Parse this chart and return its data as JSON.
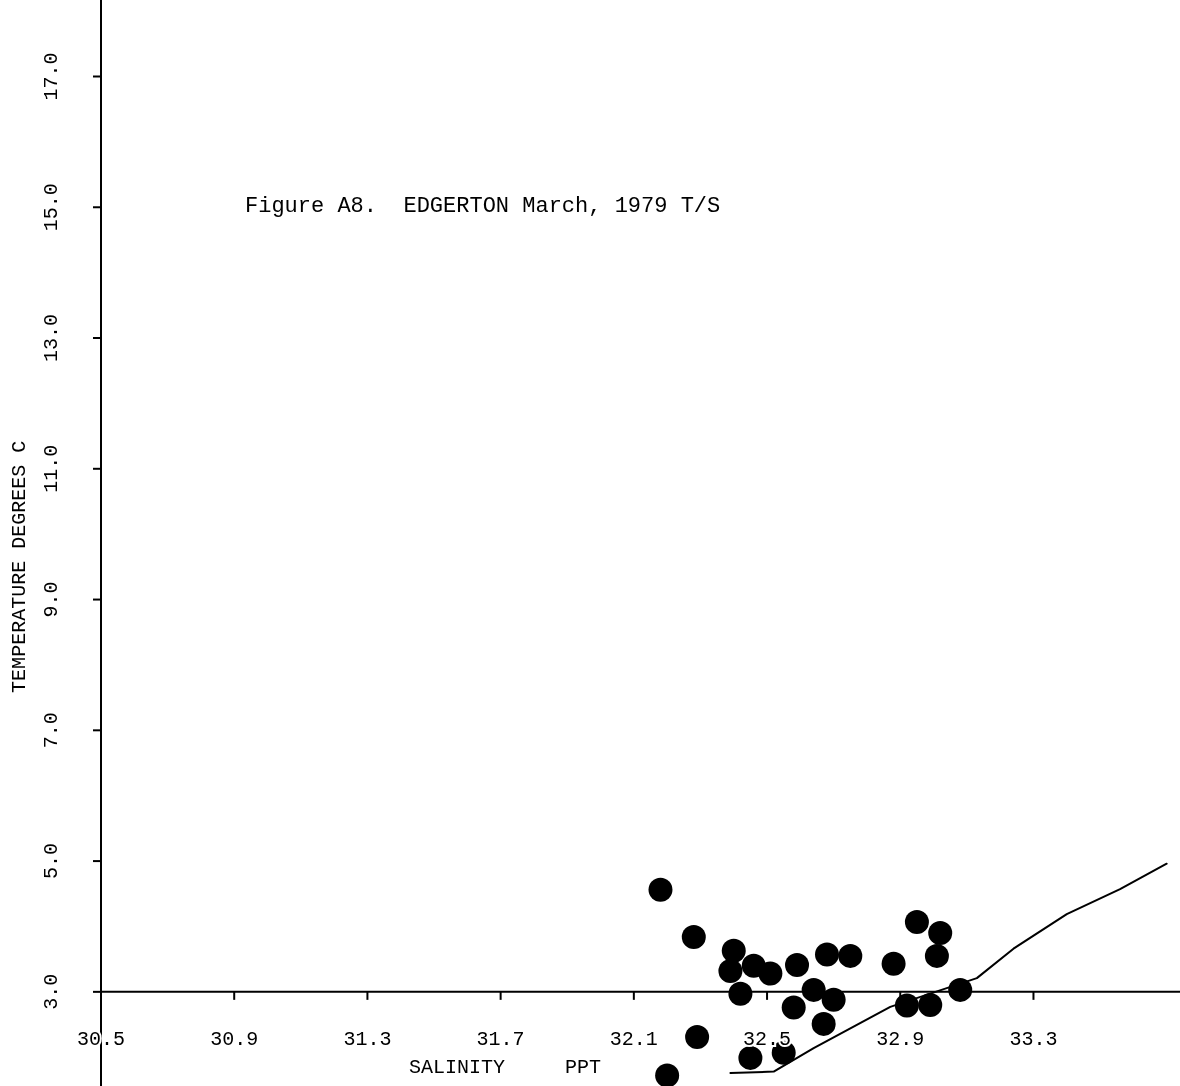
{
  "chart_data": {
    "type": "scatter",
    "title": "Figure A8.  EDGERTON March, 1979 T/S",
    "xlabel": "SALINITY     PPT",
    "ylabel": "TEMPERATURE DEGREES C",
    "xlim": [
      30.5,
      33.74
    ],
    "xticks": [
      {
        "value": 30.5,
        "label": "30.5"
      },
      {
        "value": 30.9,
        "label": "30.9"
      },
      {
        "value": 31.3,
        "label": "31.3"
      },
      {
        "value": 31.7,
        "label": "31.7"
      },
      {
        "value": 32.1,
        "label": "32.1"
      },
      {
        "value": 32.5,
        "label": "32.5"
      },
      {
        "value": 32.9,
        "label": "32.9"
      },
      {
        "value": 33.3,
        "label": "33.3"
      }
    ],
    "ylim": [
      1.56,
      18.17
    ],
    "yticks": [
      {
        "value": 3,
        "label": "3.0"
      },
      {
        "value": 5,
        "label": "5.0"
      },
      {
        "value": 7,
        "label": "7.0"
      },
      {
        "value": 9,
        "label": "9.0"
      },
      {
        "value": 11,
        "label": "11.0"
      },
      {
        "value": 13,
        "label": "13.0"
      },
      {
        "value": 15,
        "label": "15.0"
      },
      {
        "value": 17,
        "label": "17.0"
      }
    ],
    "grid": false,
    "marker": "circle",
    "series": [
      {
        "color": "#000000",
        "x": [
          32.18,
          32.28,
          32.4,
          32.39,
          32.46,
          32.51,
          32.42,
          32.59,
          32.68,
          32.75,
          32.64,
          32.7,
          32.58,
          32.67,
          32.29,
          32.55,
          32.45,
          32.2,
          32.88,
          32.95,
          33.02,
          33.01,
          33.08,
          32.92,
          32.99
        ],
        "values": [
          4.56,
          3.84,
          3.63,
          3.32,
          3.4,
          3.28,
          2.97,
          3.41,
          3.57,
          3.55,
          3.03,
          2.88,
          2.76,
          2.51,
          2.31,
          2.07,
          1.99,
          1.72,
          3.43,
          4.07,
          3.9,
          3.55,
          3.03,
          2.79,
          2.8
        ]
      },
      {
        "type": "line",
        "marker": "none",
        "color": "#000000",
        "x": [
          32.39,
          32.52,
          32.64,
          32.87,
          33.13,
          33.24,
          33.4,
          33.56,
          33.7
        ],
        "values": [
          1.76,
          1.78,
          2.14,
          2.77,
          3.21,
          3.66,
          4.19,
          4.57,
          4.96
        ]
      }
    ]
  }
}
